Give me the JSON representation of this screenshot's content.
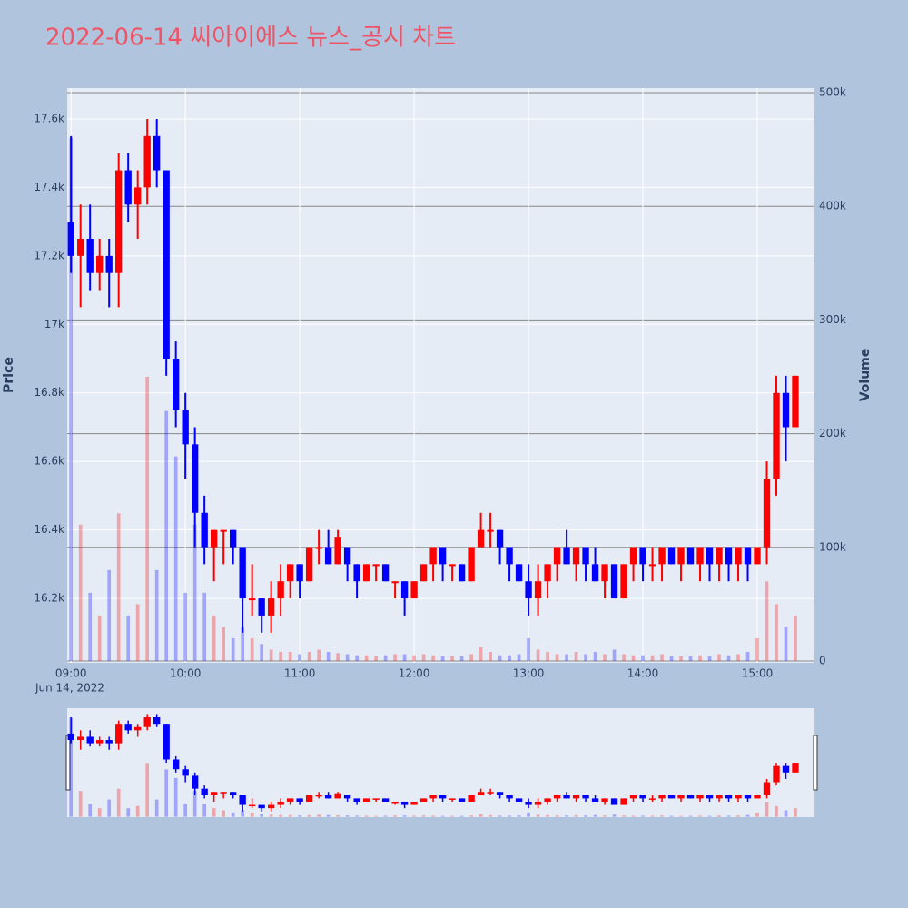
{
  "chart_data": {
    "type": "candlestick",
    "title": "2022-06-14 씨아이에스 뉴스_공시 차트",
    "yaxis_title": "Price",
    "y2axis_title": "Volume",
    "x_date_label": "Jun 14, 2022",
    "increasing_color": "#ff0000",
    "decreasing_color": "#0000ff",
    "xlim": [
      "08:58",
      "15:30"
    ],
    "xticks": [
      "09:00",
      "10:00",
      "11:00",
      "12:00",
      "13:00",
      "14:00",
      "15:00"
    ],
    "ylim": [
      16012,
      17690
    ],
    "yticks": [
      {
        "value": 16200,
        "label": "16.2k"
      },
      {
        "value": 16400,
        "label": "16.4k"
      },
      {
        "value": 16600,
        "label": "16.6k"
      },
      {
        "value": 16800,
        "label": "16.8k"
      },
      {
        "value": 17000,
        "label": "17k"
      },
      {
        "value": 17200,
        "label": "17.2k"
      },
      {
        "value": 17400,
        "label": "17.4k"
      },
      {
        "value": 17600,
        "label": "17.6k"
      }
    ],
    "y2lim": [
      -1600,
      504000
    ],
    "y2ticks": [
      0,
      {
        "value": 100000,
        "label": "100k"
      },
      {
        "value": 200000,
        "label": "200k"
      },
      {
        "value": 300000,
        "label": "300k"
      },
      {
        "value": 400000,
        "label": "400k"
      },
      {
        "value": 500000,
        "label": "500k"
      }
    ],
    "x": [
      "09:00",
      "09:05",
      "09:10",
      "09:15",
      "09:20",
      "09:25",
      "09:30",
      "09:35",
      "09:40",
      "09:45",
      "09:50",
      "09:55",
      "10:00",
      "10:05",
      "10:10",
      "10:15",
      "10:20",
      "10:25",
      "10:30",
      "10:35",
      "10:40",
      "10:45",
      "10:50",
      "10:55",
      "11:00",
      "11:05",
      "11:10",
      "11:15",
      "11:20",
      "11:25",
      "11:30",
      "11:35",
      "11:40",
      "11:45",
      "11:50",
      "11:55",
      "12:00",
      "12:05",
      "12:10",
      "12:15",
      "12:20",
      "12:25",
      "12:30",
      "12:35",
      "12:40",
      "12:45",
      "12:50",
      "12:55",
      "13:00",
      "13:05",
      "13:10",
      "13:15",
      "13:20",
      "13:25",
      "13:30",
      "13:35",
      "13:40",
      "13:45",
      "13:50",
      "13:55",
      "14:00",
      "14:05",
      "14:10",
      "14:15",
      "14:20",
      "14:25",
      "14:30",
      "14:35",
      "14:40",
      "14:45",
      "14:50",
      "14:55",
      "15:00",
      "15:05",
      "15:10",
      "15:15",
      "15:20"
    ],
    "open": [
      17300,
      17200,
      17250,
      17150,
      17200,
      17150,
      17450,
      17350,
      17400,
      17550,
      17450,
      16900,
      16750,
      16650,
      16450,
      16350,
      16400,
      16400,
      16350,
      16200,
      16200,
      16150,
      16200,
      16250,
      16300,
      16250,
      16350,
      16350,
      16300,
      16350,
      16300,
      16250,
      16300,
      16300,
      16250,
      16250,
      16200,
      16250,
      16300,
      16350,
      16300,
      16300,
      16250,
      16350,
      16400,
      16400,
      16350,
      16300,
      16250,
      16200,
      16250,
      16300,
      16350,
      16300,
      16350,
      16300,
      16250,
      16300,
      16200,
      16300,
      16350,
      16300,
      16300,
      16350,
      16300,
      16350,
      16300,
      16350,
      16300,
      16350,
      16300,
      16350,
      16300,
      16350,
      16550,
      16800,
      16700
    ],
    "high": [
      17550,
      17350,
      17350,
      17250,
      17250,
      17500,
      17500,
      17450,
      17600,
      17600,
      17450,
      16950,
      16800,
      16700,
      16500,
      16400,
      16400,
      16400,
      16350,
      16300,
      16200,
      16250,
      16300,
      16300,
      16300,
      16350,
      16400,
      16400,
      16400,
      16350,
      16300,
      16300,
      16300,
      16300,
      16250,
      16250,
      16250,
      16300,
      16350,
      16350,
      16300,
      16300,
      16350,
      16450,
      16450,
      16400,
      16350,
      16300,
      16300,
      16300,
      16300,
      16350,
      16400,
      16350,
      16350,
      16350,
      16300,
      16300,
      16300,
      16350,
      16350,
      16350,
      16350,
      16350,
      16350,
      16350,
      16350,
      16350,
      16350,
      16350,
      16350,
      16350,
      16350,
      16600,
      16850,
      16850,
      16850
    ],
    "low": [
      17150,
      17050,
      17100,
      17100,
      17050,
      17050,
      17300,
      17250,
      17350,
      17400,
      16850,
      16700,
      16550,
      16350,
      16300,
      16250,
      16300,
      16300,
      16100,
      16150,
      16100,
      16100,
      16150,
      16200,
      16200,
      16250,
      16300,
      16300,
      16300,
      16250,
      16200,
      16250,
      16250,
      16250,
      16200,
      16150,
      16200,
      16250,
      16250,
      16250,
      16250,
      16250,
      16250,
      16350,
      16350,
      16300,
      16250,
      16250,
      16150,
      16150,
      16200,
      16250,
      16300,
      16250,
      16250,
      16250,
      16200,
      16200,
      16200,
      16250,
      16250,
      16250,
      16250,
      16300,
      16250,
      16300,
      16250,
      16250,
      16250,
      16250,
      16250,
      16250,
      16300,
      16300,
      16500,
      16600,
      16700
    ],
    "close": [
      17200,
      17250,
      17150,
      17200,
      17150,
      17450,
      17350,
      17400,
      17550,
      17450,
      16900,
      16750,
      16650,
      16450,
      16350,
      16400,
      16400,
      16350,
      16200,
      16200,
      16150,
      16200,
      16250,
      16300,
      16250,
      16350,
      16350,
      16300,
      16380,
      16300,
      16250,
      16300,
      16300,
      16250,
      16250,
      16200,
      16250,
      16300,
      16350,
      16300,
      16300,
      16250,
      16350,
      16400,
      16400,
      16350,
      16300,
      16250,
      16200,
      16250,
      16300,
      16350,
      16300,
      16350,
      16300,
      16250,
      16300,
      16200,
      16300,
      16350,
      16300,
      16300,
      16350,
      16300,
      16350,
      16300,
      16350,
      16300,
      16350,
      16300,
      16350,
      16300,
      16350,
      16550,
      16800,
      16700,
      16850
    ],
    "volume": [
      460000,
      120000,
      60000,
      40000,
      80000,
      130000,
      40000,
      50000,
      250000,
      80000,
      220000,
      180000,
      60000,
      120000,
      60000,
      40000,
      30000,
      20000,
      30000,
      20000,
      15000,
      10000,
      8000,
      8000,
      6000,
      8000,
      10000,
      8000,
      7000,
      6000,
      5000,
      5000,
      4000,
      5000,
      6000,
      6000,
      5000,
      6000,
      5000,
      4000,
      4000,
      4000,
      6000,
      12000,
      8000,
      5000,
      5000,
      6000,
      20000,
      10000,
      8000,
      6000,
      6000,
      8000,
      6000,
      8000,
      6000,
      10000,
      6000,
      5000,
      5000,
      5000,
      6000,
      4000,
      4000,
      4000,
      5000,
      4000,
      6000,
      5000,
      6000,
      8000,
      20000,
      70000,
      50000,
      30000,
      40000
    ]
  }
}
